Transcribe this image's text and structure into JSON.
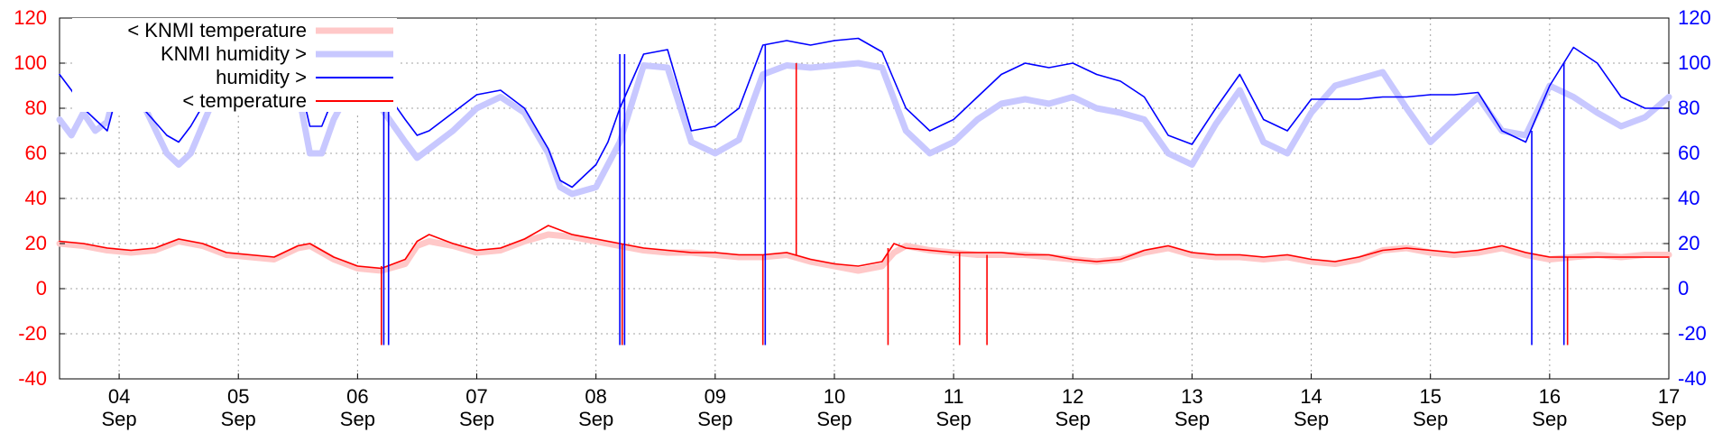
{
  "chart_data": {
    "type": "line",
    "title": "",
    "xlabel": "",
    "ylabel": "",
    "xlim": [
      3.5,
      17.0
    ],
    "ylim_left": [
      -40,
      120
    ],
    "ylim_right": [
      -40,
      120
    ],
    "grid": true,
    "legend_placement": "top-left",
    "yticks_left": [
      "120",
      "100",
      "80",
      "60",
      "40",
      "20",
      "0",
      "-20",
      "-40"
    ],
    "yticks_right": [
      "120",
      "100",
      "80",
      "60",
      "40",
      "20",
      "0",
      "-20",
      "-40"
    ],
    "xticks": [
      {
        "day": "04",
        "month": "Sep",
        "x": 4
      },
      {
        "day": "05",
        "month": "Sep",
        "x": 5
      },
      {
        "day": "06",
        "month": "Sep",
        "x": 6
      },
      {
        "day": "07",
        "month": "Sep",
        "x": 7
      },
      {
        "day": "08",
        "month": "Sep",
        "x": 8
      },
      {
        "day": "09",
        "month": "Sep",
        "x": 9
      },
      {
        "day": "10",
        "month": "Sep",
        "x": 10
      },
      {
        "day": "11",
        "month": "Sep",
        "x": 11
      },
      {
        "day": "12",
        "month": "Sep",
        "x": 12
      },
      {
        "day": "13",
        "month": "Sep",
        "x": 13
      },
      {
        "day": "14",
        "month": "Sep",
        "x": 14
      },
      {
        "day": "15",
        "month": "Sep",
        "x": 15
      },
      {
        "day": "16",
        "month": "Sep",
        "x": 16
      },
      {
        "day": "17",
        "month": "Sep",
        "x": 17
      }
    ],
    "colors": {
      "left_axis": "#ff0000",
      "right_axis": "#0000ff",
      "knmi_temperature": "#ffc8c8",
      "knmi_humidity": "#c8c8ff",
      "humidity": "#0000ff",
      "temperature": "#ff0000"
    },
    "series": [
      {
        "name": "< KNMI temperature",
        "axis": "left",
        "style": "thick",
        "x": [
          3.5,
          3.7,
          3.9,
          4.1,
          4.3,
          4.5,
          4.7,
          4.9,
          5.1,
          5.3,
          5.5,
          5.6,
          5.7,
          5.8,
          5.9,
          6.0,
          6.2,
          6.4,
          6.5,
          6.6,
          6.8,
          7.0,
          7.2,
          7.4,
          7.6,
          7.8,
          8.0,
          8.2,
          8.4,
          8.6,
          8.8,
          9.0,
          9.2,
          9.4,
          9.6,
          9.8,
          10.0,
          10.2,
          10.4,
          10.5,
          10.6,
          10.8,
          11.0,
          11.2,
          11.4,
          11.6,
          11.8,
          12.0,
          12.2,
          12.4,
          12.6,
          12.8,
          13.0,
          13.2,
          13.4,
          13.6,
          13.8,
          14.0,
          14.2,
          14.4,
          14.6,
          14.8,
          15.0,
          15.2,
          15.4,
          15.6,
          15.8,
          16.0,
          16.2,
          16.4,
          16.6,
          16.8,
          17.0
        ],
        "y": [
          20,
          19,
          17,
          16,
          17,
          21,
          19,
          15,
          14,
          13,
          18,
          19,
          16,
          13,
          11,
          9,
          8,
          11,
          19,
          21,
          19,
          16,
          17,
          21,
          24,
          23,
          21,
          19,
          17,
          16,
          16,
          15,
          14,
          14,
          15,
          12,
          10,
          8,
          10,
          16,
          19,
          17,
          16,
          15,
          15,
          15,
          14,
          13,
          12,
          13,
          16,
          18,
          15,
          14,
          14,
          13,
          14,
          12,
          11,
          13,
          17,
          18,
          16,
          15,
          16,
          18,
          15,
          13,
          14,
          15,
          14,
          15,
          15
        ]
      },
      {
        "name": "KNMI humidity >",
        "axis": "right",
        "style": "thick",
        "x": [
          3.5,
          3.6,
          3.7,
          3.8,
          3.9,
          4.0,
          4.2,
          4.4,
          4.5,
          4.6,
          4.8,
          5.0,
          5.2,
          5.4,
          5.5,
          5.6,
          5.7,
          5.8,
          5.9,
          6.0,
          6.1,
          6.2,
          6.4,
          6.5,
          6.6,
          6.8,
          7.0,
          7.2,
          7.4,
          7.6,
          7.7,
          7.8,
          8.0,
          8.1,
          8.2,
          8.4,
          8.6,
          8.8,
          9.0,
          9.2,
          9.4,
          9.6,
          9.8,
          10.0,
          10.2,
          10.3,
          10.4,
          10.6,
          10.8,
          11.0,
          11.2,
          11.4,
          11.6,
          11.8,
          12.0,
          12.2,
          12.4,
          12.6,
          12.8,
          13.0,
          13.2,
          13.4,
          13.6,
          13.8,
          14.0,
          14.2,
          14.4,
          14.6,
          14.8,
          15.0,
          15.2,
          15.4,
          15.6,
          15.8,
          16.0,
          16.2,
          16.4,
          16.6,
          16.8,
          17.0
        ],
        "y": [
          75,
          68,
          78,
          70,
          74,
          95,
          82,
          60,
          55,
          60,
          85,
          95,
          92,
          90,
          88,
          60,
          60,
          75,
          85,
          92,
          96,
          80,
          65,
          58,
          62,
          70,
          80,
          85,
          78,
          60,
          45,
          42,
          45,
          55,
          65,
          99,
          98,
          65,
          60,
          66,
          95,
          99,
          98,
          99,
          100,
          99,
          98,
          70,
          60,
          65,
          75,
          82,
          84,
          82,
          85,
          80,
          78,
          75,
          60,
          55,
          73,
          88,
          65,
          60,
          78,
          90,
          93,
          96,
          80,
          65,
          75,
          85,
          70,
          68,
          90,
          85,
          78,
          72,
          76,
          85
        ]
      },
      {
        "name": "humidity >",
        "axis": "right",
        "style": "thin",
        "x": [
          3.5,
          3.6,
          3.7,
          3.8,
          3.9,
          4.0,
          4.2,
          4.4,
          4.5,
          4.6,
          4.8,
          5.0,
          5.2,
          5.4,
          5.5,
          5.6,
          5.7,
          5.8,
          5.9,
          6.0,
          6.1,
          6.2,
          6.4,
          6.5,
          6.6,
          6.8,
          7.0,
          7.2,
          7.4,
          7.6,
          7.7,
          7.8,
          8.0,
          8.1,
          8.2,
          8.4,
          8.6,
          8.8,
          9.0,
          9.2,
          9.4,
          9.6,
          9.8,
          10.0,
          10.2,
          10.3,
          10.4,
          10.6,
          10.8,
          11.0,
          11.2,
          11.4,
          11.6,
          11.8,
          12.0,
          12.2,
          12.4,
          12.6,
          12.8,
          13.0,
          13.2,
          13.4,
          13.6,
          13.8,
          14.0,
          14.2,
          14.4,
          14.6,
          14.8,
          15.0,
          15.2,
          15.4,
          15.6,
          15.8,
          16.0,
          16.2,
          16.4,
          16.6,
          16.8,
          17.0
        ],
        "y": [
          95,
          88,
          80,
          75,
          70,
          90,
          80,
          68,
          65,
          72,
          90,
          100,
          100,
          98,
          95,
          72,
          72,
          85,
          95,
          100,
          102,
          90,
          75,
          68,
          70,
          78,
          86,
          88,
          80,
          62,
          48,
          45,
          55,
          65,
          80,
          104,
          106,
          70,
          72,
          80,
          108,
          110,
          108,
          110,
          111,
          108,
          105,
          80,
          70,
          75,
          85,
          95,
          100,
          98,
          100,
          95,
          92,
          85,
          68,
          64,
          80,
          95,
          75,
          70,
          84,
          84,
          84,
          85,
          85,
          86,
          86,
          87,
          70,
          65,
          90,
          107,
          100,
          85,
          80,
          80
        ]
      },
      {
        "name": "< temperature",
        "axis": "left",
        "style": "thin",
        "x": [
          3.5,
          3.7,
          3.9,
          4.1,
          4.3,
          4.5,
          4.7,
          4.9,
          5.1,
          5.3,
          5.5,
          5.6,
          5.7,
          5.8,
          5.9,
          6.0,
          6.2,
          6.4,
          6.5,
          6.6,
          6.8,
          7.0,
          7.2,
          7.4,
          7.6,
          7.8,
          8.0,
          8.2,
          8.4,
          8.6,
          8.8,
          9.0,
          9.2,
          9.4,
          9.6,
          9.8,
          10.0,
          10.2,
          10.4,
          10.5,
          10.6,
          10.8,
          11.0,
          11.2,
          11.4,
          11.6,
          11.8,
          12.0,
          12.2,
          12.4,
          12.6,
          12.8,
          13.0,
          13.2,
          13.4,
          13.6,
          13.8,
          14.0,
          14.2,
          14.4,
          14.6,
          14.8,
          15.0,
          15.2,
          15.4,
          15.6,
          15.8,
          16.0,
          16.2,
          16.4,
          16.6,
          16.8,
          17.0
        ],
        "y": [
          21,
          20,
          18,
          17,
          18,
          22,
          20,
          16,
          15,
          14,
          19,
          20,
          17,
          14,
          12,
          10,
          9,
          13,
          21,
          24,
          20,
          17,
          18,
          22,
          28,
          24,
          22,
          20,
          18,
          17,
          16,
          16,
          15,
          15,
          16,
          13,
          11,
          10,
          12,
          20,
          18,
          17,
          16,
          16,
          16,
          15,
          15,
          13,
          12,
          13,
          17,
          19,
          16,
          15,
          15,
          14,
          15,
          13,
          12,
          14,
          17,
          18,
          17,
          16,
          17,
          19,
          16,
          14,
          14,
          14,
          14,
          14,
          14
        ]
      }
    ],
    "spikes": [
      {
        "x": 6.2,
        "from": 10,
        "to": -25,
        "color": "#ff0000"
      },
      {
        "x": 6.22,
        "from": 95,
        "to": -25,
        "color": "#0000ff"
      },
      {
        "x": 6.26,
        "from": 95,
        "to": -25,
        "color": "#0000ff"
      },
      {
        "x": 8.2,
        "from": 104,
        "to": -25,
        "color": "#0000ff"
      },
      {
        "x": 8.22,
        "from": 20,
        "to": -25,
        "color": "#ff0000"
      },
      {
        "x": 8.24,
        "from": 104,
        "to": -25,
        "color": "#0000ff"
      },
      {
        "x": 9.42,
        "from": 108,
        "to": -25,
        "color": "#0000ff"
      },
      {
        "x": 9.4,
        "from": 15,
        "to": -25,
        "color": "#ff0000"
      },
      {
        "x": 9.68,
        "from": 100,
        "to": 15,
        "color": "#ff0000"
      },
      {
        "x": 10.45,
        "from": 18,
        "to": -25,
        "color": "#ff0000"
      },
      {
        "x": 11.05,
        "from": 16,
        "to": -25,
        "color": "#ff0000"
      },
      {
        "x": 11.28,
        "from": 15,
        "to": -25,
        "color": "#ff0000"
      },
      {
        "x": 15.85,
        "from": 70,
        "to": -25,
        "color": "#0000ff"
      },
      {
        "x": 16.12,
        "from": 100,
        "to": -25,
        "color": "#0000ff"
      },
      {
        "x": 16.15,
        "from": 14,
        "to": -25,
        "color": "#ff0000"
      }
    ]
  }
}
